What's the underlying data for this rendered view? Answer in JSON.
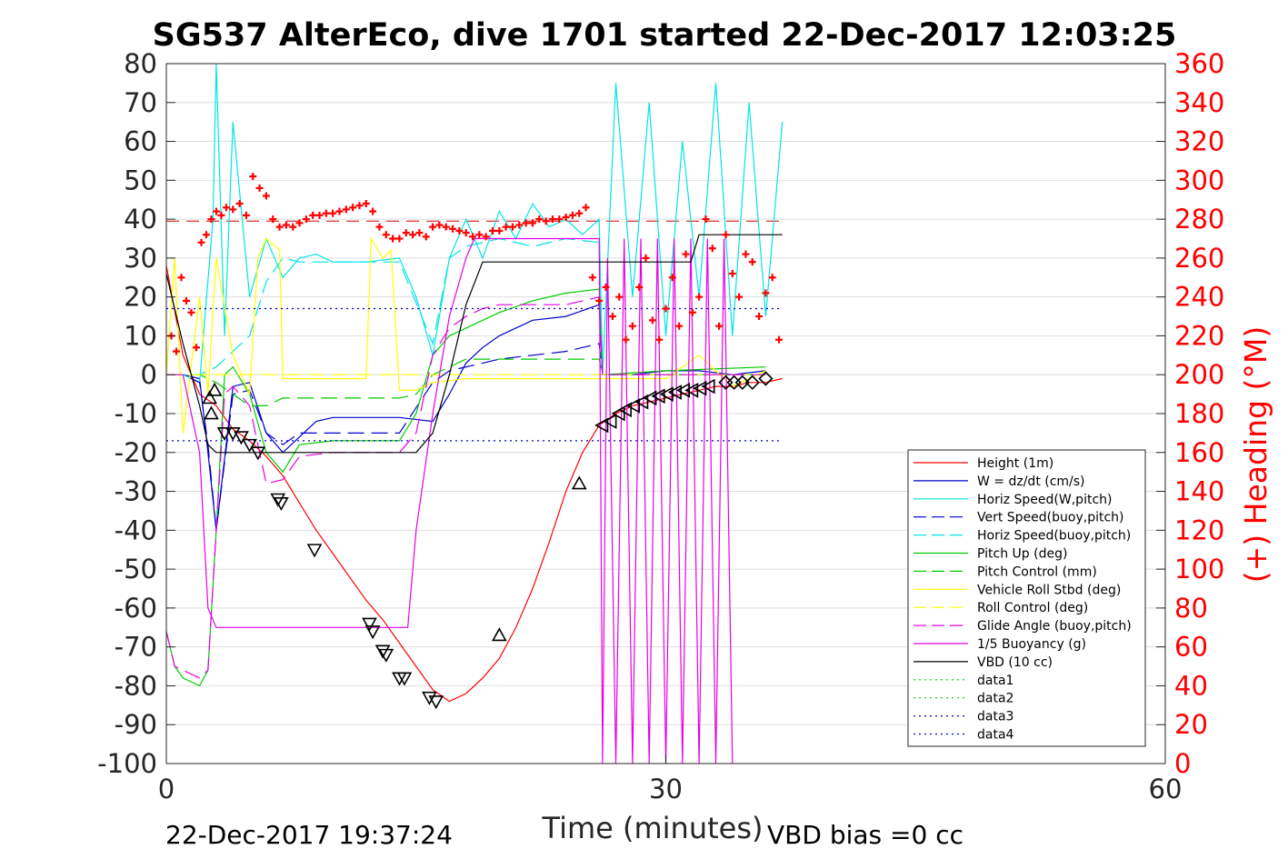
{
  "chart_data": {
    "type": "line",
    "title": "SG537 AlterEco, dive 1701 started 22-Dec-2017 12:03:25",
    "xlabel": "Time (minutes)",
    "ylabel": "",
    "y2label": "(+) Heading (°M)",
    "xlim": [
      0,
      60
    ],
    "ylim": [
      -100,
      80
    ],
    "y2lim": [
      0,
      360
    ],
    "xticks": [
      "0",
      "30",
      "60"
    ],
    "yticks": [
      "80",
      "70",
      "60",
      "50",
      "40",
      "30",
      "20",
      "10",
      "0",
      "-10",
      "-20",
      "-30",
      "-40",
      "-50",
      "-60",
      "-70",
      "-80",
      "-90",
      "-100"
    ],
    "y2ticks": [
      "360",
      "340",
      "320",
      "300",
      "280",
      "260",
      "240",
      "220",
      "200",
      "180",
      "160",
      "140",
      "120",
      "100",
      "80",
      "60",
      "40",
      "20",
      "0"
    ],
    "grid": true,
    "legend_position": "lower-right",
    "footer_left": "22-Dec-2017 19:37:24",
    "footer_right": "VBD bias =0 cc",
    "colors": {
      "height": "#ff0000",
      "w": "#0000cc",
      "horiz": "#00e5e5",
      "pitch": "#00cc00",
      "roll": "#ffff00",
      "glide": "#e600e6",
      "vbd": "#000000",
      "heading_axis": "#ff0000"
    },
    "series": [
      {
        "key": "height",
        "name": "Height (1m)",
        "color": "#ff0000",
        "dash": "",
        "x": [
          0,
          1,
          2,
          3,
          4,
          5,
          6,
          7,
          8,
          9,
          10,
          11,
          12,
          13,
          14,
          15,
          16,
          17,
          18,
          19,
          20,
          21,
          22,
          23,
          24,
          25,
          26,
          27,
          28,
          29,
          30,
          31,
          32,
          33,
          34,
          35,
          36,
          37
        ],
        "y": [
          28,
          5,
          -5,
          -8,
          -14,
          -17,
          -21,
          -26,
          -33,
          -40,
          -46,
          -52,
          -58,
          -63,
          -69,
          -75,
          -81,
          -84,
          -82,
          -78,
          -73,
          -65,
          -55,
          -43,
          -30,
          -20,
          -13,
          -10,
          -8,
          -7,
          -6,
          -5,
          -4,
          -3,
          -3,
          -2,
          -2,
          -1
        ]
      },
      {
        "key": "w",
        "name": "W = dz/dt (cm/s)",
        "color": "#0000cc",
        "dash": "",
        "x": [
          0,
          1,
          2,
          2.5,
          3,
          4,
          5,
          6,
          7,
          8,
          9,
          10,
          12,
          14,
          16,
          17,
          18,
          19,
          20,
          22,
          24,
          26,
          26.2,
          28,
          30,
          32,
          34,
          36
        ],
        "y": [
          0,
          0,
          -1,
          -20,
          -40,
          -3,
          -2,
          -15,
          -20,
          -16,
          -12,
          -11,
          -11,
          -11,
          -12,
          -5,
          3,
          7,
          10,
          14,
          15,
          18,
          0,
          0,
          1,
          1,
          0,
          1
        ]
      },
      {
        "key": "horiz_w",
        "name": "Horiz Speed(W,pitch)",
        "color": "#00e5e5",
        "dash": "",
        "x": [
          0,
          1,
          2,
          2.8,
          3,
          3.5,
          4,
          5,
          6,
          7,
          8,
          9,
          10,
          12,
          14,
          15,
          16,
          17,
          18,
          19,
          20,
          21,
          22,
          23,
          24,
          25,
          26,
          26.2,
          27,
          28,
          29,
          30,
          31,
          32,
          33,
          34,
          35,
          36,
          37
        ],
        "y": [
          0,
          0,
          -2,
          40,
          80,
          10,
          65,
          20,
          35,
          25,
          30,
          31,
          29,
          29,
          30,
          20,
          5,
          30,
          40,
          30,
          42,
          35,
          44,
          38,
          40,
          36,
          40,
          0,
          75,
          20,
          70,
          10,
          60,
          20,
          75,
          10,
          70,
          15,
          65
        ]
      },
      {
        "key": "vert_buoy",
        "name": "Vert Speed(buoy,pitch)",
        "color": "#0000cc",
        "dash": "18,8",
        "x": [
          0,
          1,
          2,
          2.5,
          3,
          4,
          5,
          6,
          7,
          8,
          10,
          14,
          16,
          17,
          18,
          19,
          20,
          22,
          24,
          26,
          26.2,
          30,
          36
        ],
        "y": [
          0,
          0,
          -2,
          -18,
          -40,
          -5,
          -4,
          -15,
          -18,
          -15,
          -15,
          -15,
          -2,
          1,
          2,
          3,
          4,
          5,
          6,
          8,
          0,
          0,
          0
        ]
      },
      {
        "key": "horiz_buoy",
        "name": "Horiz Speed(buoy,pitch)",
        "color": "#00e5e5",
        "dash": "18,8",
        "x": [
          0,
          1,
          2,
          3,
          4,
          5,
          6,
          7,
          8,
          10,
          14,
          16,
          17,
          18,
          20,
          22,
          24,
          26,
          26.2,
          30,
          36
        ],
        "y": [
          0,
          0,
          0,
          2,
          6,
          10,
          24,
          30,
          29,
          29,
          29,
          8,
          30,
          33,
          35,
          33,
          35,
          34,
          0,
          0,
          0
        ]
      },
      {
        "key": "pitch",
        "name": "Pitch Up (deg)",
        "color": "#00cc00",
        "dash": "",
        "x": [
          0,
          0.5,
          1,
          2,
          2.5,
          3,
          3.5,
          4,
          5,
          6,
          7,
          8,
          10,
          12,
          14,
          15,
          16,
          17,
          18,
          19,
          20,
          22,
          24,
          26,
          26.2,
          30,
          36
        ],
        "y": [
          -66,
          -75,
          -78,
          -80,
          -76,
          -40,
          0,
          2,
          -5,
          -20,
          -25,
          -18,
          -17,
          -17,
          -17,
          -10,
          5,
          10,
          12,
          14,
          16,
          19,
          21,
          22,
          0,
          1,
          2
        ]
      },
      {
        "key": "pitch_ctrl",
        "name": "Pitch Control (mm)",
        "color": "#00cc00",
        "dash": "18,8",
        "x": [
          0,
          1,
          2,
          3,
          4,
          5,
          6,
          7,
          10,
          14,
          15,
          16,
          17,
          18,
          19,
          20,
          22,
          24,
          26,
          26.2,
          30,
          36
        ],
        "y": [
          0,
          0,
          0,
          -2,
          -5,
          -8,
          -8,
          -6,
          -6,
          -6,
          -5,
          0,
          2,
          4,
          4,
          4,
          4,
          4,
          4,
          0,
          0,
          0
        ]
      },
      {
        "key": "roll",
        "name": "Vehicle Roll Stbd (deg)",
        "color": "#ffff00",
        "dash": "",
        "x": [
          0,
          0.5,
          1,
          2,
          2.5,
          3,
          4,
          5,
          5.5,
          6,
          6.8,
          7,
          8,
          10,
          12,
          12.3,
          13,
          13.5,
          14,
          15,
          16,
          18,
          20,
          22,
          24,
          26,
          28,
          30,
          32,
          34,
          36
        ],
        "y": [
          0,
          30,
          -15,
          20,
          -5,
          30,
          5,
          -5,
          30,
          35,
          32,
          -1,
          -1,
          -1,
          -1,
          35,
          30,
          32,
          -4,
          -4,
          -2,
          -1,
          -1,
          -1,
          -1,
          -1,
          -1,
          -1,
          5,
          -3,
          1
        ]
      },
      {
        "key": "roll_ctrl",
        "name": "Roll Control (deg)",
        "color": "#ffff00",
        "dash": "18,8",
        "x": [
          0,
          1,
          2,
          3,
          4,
          5,
          6,
          7,
          8,
          12,
          13,
          14,
          16,
          20,
          26,
          30,
          36
        ],
        "y": [
          0,
          0,
          0,
          0,
          0,
          0,
          0,
          0,
          0,
          0,
          0,
          0,
          0,
          0,
          0,
          0,
          0
        ]
      },
      {
        "key": "glide",
        "name": "Glide Angle (buoy,pitch)",
        "color": "#e600e6",
        "dash": "18,8",
        "x": [
          0,
          0.5,
          1,
          2,
          2.5,
          3,
          3.5,
          4,
          5,
          6,
          7,
          8,
          10,
          14,
          15,
          16,
          17,
          18,
          19,
          20,
          22,
          24,
          26,
          26.2,
          30,
          36
        ],
        "y": [
          -66,
          -75,
          -76,
          -78,
          -76,
          -40,
          -5,
          -3,
          -8,
          -28,
          -27,
          -21,
          -20,
          -20,
          -15,
          5,
          12,
          15,
          17,
          18,
          18,
          18,
          20,
          0,
          0,
          0
        ]
      },
      {
        "key": "buoyancy",
        "name": "1/5 Buoyancy (g)",
        "color": "#e600e6",
        "dash": "",
        "x": [
          0,
          1,
          2,
          2.5,
          3,
          4,
          6,
          8,
          10,
          14,
          14.5,
          15,
          16,
          17,
          18,
          18.5,
          19,
          20,
          22,
          24,
          26,
          26.2,
          26.5,
          27,
          27.5,
          28,
          28.5,
          29,
          29.5,
          30,
          30.5,
          31,
          31.5,
          32,
          32.5,
          33,
          33.5,
          34
        ],
        "y": [
          0,
          0,
          -20,
          -60,
          -65,
          -65,
          -65,
          -65,
          -65,
          -65,
          -65,
          -40,
          -10,
          15,
          30,
          35,
          35,
          35,
          35,
          35,
          35,
          -100,
          30,
          -100,
          35,
          -100,
          35,
          -100,
          35,
          -100,
          35,
          -100,
          35,
          -100,
          35,
          -100,
          35,
          -100
        ]
      },
      {
        "key": "vbd",
        "name": "VBD (10 cc)",
        "color": "#000000",
        "dash": "",
        "x": [
          0,
          1,
          2,
          2.5,
          3,
          4,
          6,
          8,
          10,
          12,
          14,
          15,
          16,
          17,
          18,
          19,
          20,
          22,
          24,
          26,
          28,
          30,
          31,
          31.5,
          32,
          34,
          36,
          37
        ],
        "y": [
          26,
          8,
          -8,
          -18,
          -20,
          -20,
          -20,
          -20,
          -20,
          -20,
          -20,
          -20,
          -15,
          0,
          18,
          29,
          29,
          29,
          29,
          29,
          29,
          29,
          29,
          29,
          36,
          36,
          36,
          36
        ]
      },
      {
        "key": "data1",
        "name": "data1",
        "color": "#00cc00",
        "dash": "2,4",
        "x": [],
        "y": []
      },
      {
        "key": "data2",
        "name": "data2",
        "color": "#00cc00",
        "dash": "2,4",
        "x": [],
        "y": []
      },
      {
        "key": "data3",
        "name": "data3",
        "color": "#0000cc",
        "dash": "2,4",
        "x": [
          0,
          37
        ],
        "y": [
          17,
          17
        ]
      },
      {
        "key": "data4",
        "name": "data4",
        "color": "#0000cc",
        "dash": "2,4",
        "x": [
          0,
          37
        ],
        "y": [
          -17,
          -17
        ]
      }
    ],
    "heading_reference": {
      "y2": 279,
      "color": "#cc0000"
    },
    "heading_points": {
      "x": [
        0.3,
        0.6,
        0.9,
        1.2,
        1.5,
        1.8,
        2.1,
        2.4,
        2.7,
        3,
        3.3,
        3.6,
        4,
        4.4,
        4.8,
        5.2,
        5.6,
        6,
        6.4,
        6.8,
        7.2,
        7.6,
        8,
        8.4,
        8.8,
        9.2,
        9.6,
        10,
        10.4,
        10.8,
        11.2,
        11.6,
        12,
        12.4,
        12.8,
        13.2,
        13.6,
        14,
        14.4,
        14.8,
        15.2,
        15.6,
        16,
        16.4,
        16.8,
        17.2,
        17.6,
        18,
        18.4,
        18.8,
        19.2,
        19.6,
        20,
        20.4,
        20.8,
        21.2,
        21.6,
        22,
        22.4,
        22.8,
        23.2,
        23.6,
        24,
        24.4,
        24.8,
        25.2,
        25.6,
        26,
        26.4,
        26.8,
        27.2,
        27.6,
        28,
        28.4,
        28.8,
        29.2,
        29.6,
        30,
        30.4,
        30.8,
        31.2,
        31.6,
        32,
        32.4,
        32.8,
        33.2,
        33.6,
        34,
        34.4,
        34.8,
        35.2,
        35.6,
        36,
        36.4,
        36.8
      ],
      "y2": [
        220,
        212,
        250,
        238,
        232,
        214,
        268,
        272,
        280,
        284,
        282,
        286,
        285,
        288,
        282,
        302,
        296,
        292,
        280,
        276,
        277,
        276,
        278,
        280,
        282,
        282,
        283,
        283,
        284,
        285,
        286,
        287,
        288,
        284,
        276,
        272,
        270,
        270,
        273,
        272,
        273,
        271,
        276,
        277,
        276,
        275,
        274,
        273,
        271,
        272,
        271,
        274,
        274,
        276,
        276,
        277,
        278,
        278,
        280,
        279,
        280,
        280,
        281,
        282,
        283,
        286,
        250,
        238,
        245,
        230,
        240,
        218,
        225,
        245,
        260,
        228,
        218,
        234,
        250,
        225,
        262,
        232,
        240,
        280,
        265,
        225,
        272,
        252,
        240,
        262,
        258,
        230,
        242,
        250,
        218,
        216
      ]
    },
    "height_markers": [
      {
        "x": 2.6,
        "y": -6,
        "m": "up"
      },
      {
        "x": 2.7,
        "y": -10,
        "m": "up"
      },
      {
        "x": 2.9,
        "y": -4,
        "m": "up"
      },
      {
        "x": 3.5,
        "y": -15,
        "m": "down"
      },
      {
        "x": 4.0,
        "y": -15,
        "m": "down"
      },
      {
        "x": 4.5,
        "y": -16,
        "m": "down"
      },
      {
        "x": 5.0,
        "y": -18,
        "m": "down"
      },
      {
        "x": 5.5,
        "y": -20,
        "m": "down"
      },
      {
        "x": 6.7,
        "y": -32,
        "m": "down"
      },
      {
        "x": 6.9,
        "y": -33,
        "m": "down"
      },
      {
        "x": 8.9,
        "y": -45,
        "m": "down"
      },
      {
        "x": 12.2,
        "y": -64,
        "m": "down"
      },
      {
        "x": 12.4,
        "y": -66,
        "m": "down"
      },
      {
        "x": 13.0,
        "y": -71,
        "m": "down"
      },
      {
        "x": 13.2,
        "y": -72,
        "m": "down"
      },
      {
        "x": 14.0,
        "y": -78,
        "m": "down"
      },
      {
        "x": 14.3,
        "y": -78,
        "m": "down"
      },
      {
        "x": 15.8,
        "y": -83,
        "m": "down"
      },
      {
        "x": 16.2,
        "y": -84,
        "m": "down"
      },
      {
        "x": 20.0,
        "y": -67,
        "m": "up"
      },
      {
        "x": 24.8,
        "y": -28,
        "m": "up"
      },
      {
        "x": 26.2,
        "y": -13,
        "m": "left"
      },
      {
        "x": 26.7,
        "y": -12,
        "m": "left"
      },
      {
        "x": 27.2,
        "y": -10,
        "m": "left"
      },
      {
        "x": 27.6,
        "y": -9,
        "m": "left"
      },
      {
        "x": 28.1,
        "y": -8,
        "m": "left"
      },
      {
        "x": 28.6,
        "y": -7,
        "m": "left"
      },
      {
        "x": 29.1,
        "y": -6,
        "m": "left"
      },
      {
        "x": 29.6,
        "y": -5.5,
        "m": "left"
      },
      {
        "x": 30.1,
        "y": -5,
        "m": "left"
      },
      {
        "x": 30.6,
        "y": -4.5,
        "m": "left"
      },
      {
        "x": 31.1,
        "y": -4,
        "m": "left"
      },
      {
        "x": 31.6,
        "y": -4,
        "m": "left"
      },
      {
        "x": 32.1,
        "y": -3.5,
        "m": "left"
      },
      {
        "x": 32.6,
        "y": -3,
        "m": "left"
      },
      {
        "x": 33.6,
        "y": -2,
        "m": "diamond"
      },
      {
        "x": 34.1,
        "y": -2,
        "m": "diamond"
      },
      {
        "x": 34.6,
        "y": -2,
        "m": "diamond"
      },
      {
        "x": 35.2,
        "y": -2,
        "m": "diamond"
      },
      {
        "x": 36.0,
        "y": -1,
        "m": "diamond"
      }
    ],
    "legend_items": [
      "Height (1m)",
      "W = dz/dt (cm/s)",
      "Horiz Speed(W,pitch)",
      "Vert Speed(buoy,pitch)",
      "Horiz Speed(buoy,pitch)",
      "Pitch Up (deg)",
      "Pitch Control (mm)",
      "Vehicle Roll Stbd (deg)",
      "Roll Control (deg)",
      "Glide Angle (buoy,pitch)",
      "1/5 Buoyancy (g)",
      "VBD (10 cc)",
      "data1",
      "data2",
      "data3",
      "data4"
    ]
  }
}
